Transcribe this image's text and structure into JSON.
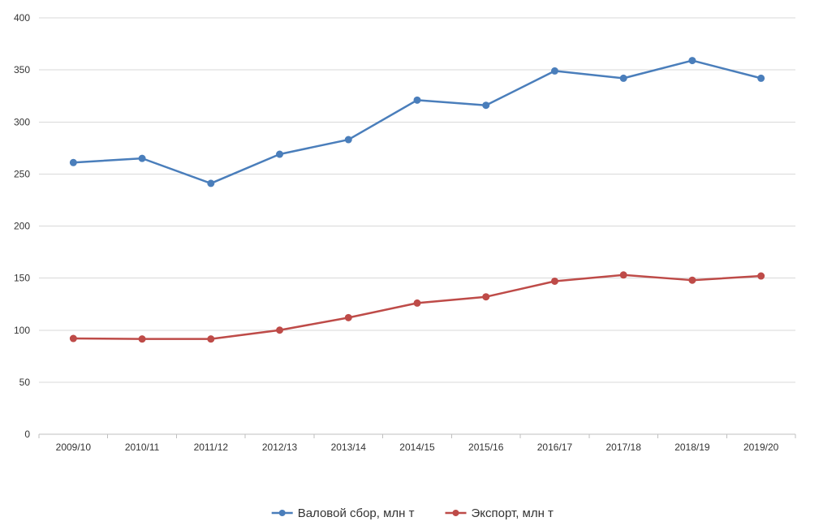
{
  "chart_data": {
    "type": "line",
    "title": "",
    "xlabel": "",
    "ylabel": "",
    "categories": [
      "2009/10",
      "2010/11",
      "2011/12",
      "2012/13",
      "2013/14",
      "2014/15",
      "2015/16",
      "2016/17",
      "2017/18",
      "2018/19",
      "2019/20"
    ],
    "ylim": [
      0,
      400
    ],
    "yticks": [
      0,
      50,
      100,
      150,
      200,
      250,
      300,
      350,
      400
    ],
    "grid": "horizontal",
    "legend_position": "bottom",
    "series": [
      {
        "name": "Валовой сбор, млн т",
        "color": "#4a7ebb",
        "values": [
          261,
          265,
          241,
          269,
          283,
          321,
          316,
          349,
          342,
          359,
          342
        ]
      },
      {
        "name": "Экспорт, млн т",
        "color": "#be4b48",
        "values": [
          92,
          91.5,
          91.5,
          100,
          112,
          126,
          132,
          147,
          153,
          148,
          152
        ]
      }
    ]
  }
}
